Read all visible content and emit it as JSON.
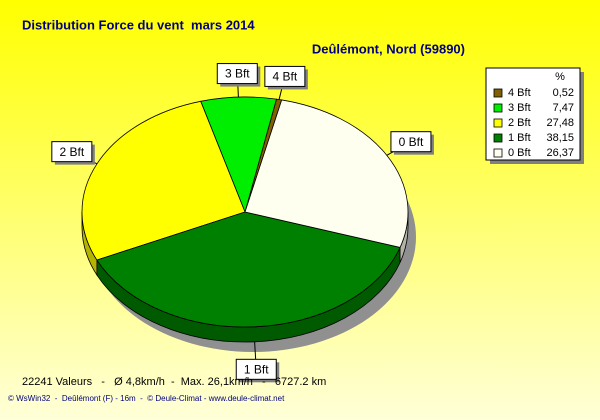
{
  "chart_data": {
    "type": "pie",
    "title": "Distribution Force du vent  mars 2014",
    "subtitle": "Deûlémont, Nord (59890)",
    "legend_header": "%",
    "categories": [
      "4 Bft",
      "3 Bft",
      "2 Bft",
      "1 Bft",
      "0 Bft"
    ],
    "values": [
      0.52,
      7.47,
      27.48,
      38.15,
      26.37
    ],
    "value_labels": [
      "0,52",
      "7,47",
      "27,48",
      "38,15",
      "26,37"
    ],
    "colors": [
      "#806000",
      "#00ee00",
      "#ffff00",
      "#008000",
      "#fffff0"
    ],
    "annotations": [
      "22241 Valeurs   -   Ø 4,8km/h  -  Max. 26,1km/h   -   6727.2 km",
      "© WsWin32  -  Deûlémont (F) - 16m  -  © Deule-Climat - www.deule-climat.net"
    ]
  }
}
